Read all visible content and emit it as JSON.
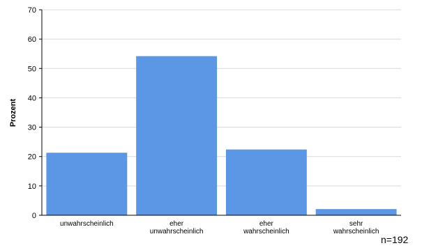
{
  "chart_data": {
    "type": "bar",
    "categories": [
      [
        "unwahrscheinlich"
      ],
      [
        "eher",
        "unwahrscheinlich"
      ],
      [
        "eher",
        "wahrscheinlich"
      ],
      [
        "sehr",
        "wahrscheinlich"
      ]
    ],
    "values": [
      21.3,
      54.2,
      22.4,
      2.1
    ],
    "ylabel": "Prozent",
    "xlabel": "",
    "ylim": [
      0,
      70
    ],
    "yticks": [
      0,
      10,
      20,
      30,
      40,
      50,
      60,
      70
    ],
    "grid": true,
    "bar_color": "#5b97e4",
    "grid_color": "#d9d9d9"
  },
  "note": "n=192"
}
